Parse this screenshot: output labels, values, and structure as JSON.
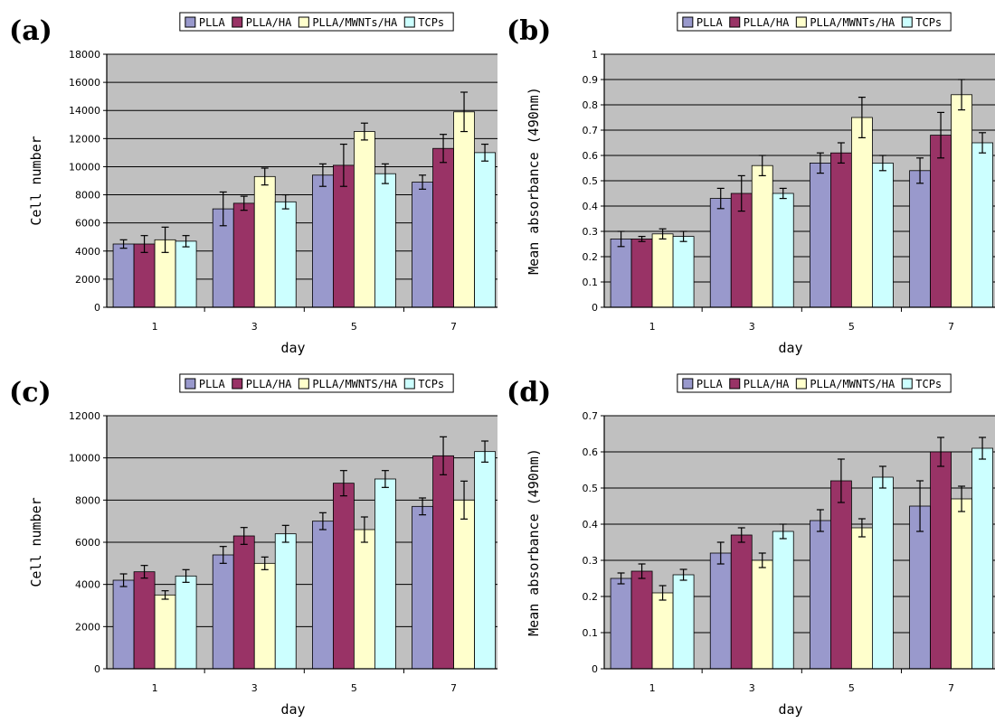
{
  "colors": {
    "PLLA": "#9999cc",
    "PLLA/HA": "#993366",
    "PLLA/MWNTs/HA": "#ffffcc",
    "TCPs": "#ccffff",
    "plot_bg": "#c0c0c0",
    "gridline": "#000000"
  },
  "chart_data": [
    {
      "panel": "(a)",
      "type": "bar",
      "xlabel": "day",
      "ylabel": "Cell number",
      "ylim": [
        0,
        18000
      ],
      "ytick_step": 2000,
      "grid": true,
      "legend_position": "top",
      "categories": [
        "1",
        "3",
        "5",
        "7"
      ],
      "series": [
        {
          "name": "PLLA",
          "values": [
            4500,
            7000,
            9400,
            8900
          ],
          "errors": [
            300,
            1200,
            800,
            500
          ]
        },
        {
          "name": "PLLA/HA",
          "values": [
            4500,
            7400,
            10100,
            11300
          ],
          "errors": [
            600,
            500,
            1500,
            1000
          ]
        },
        {
          "name": "PLLA/MWNTs/HA",
          "values": [
            4800,
            9300,
            12500,
            13900
          ],
          "errors": [
            900,
            600,
            600,
            1400
          ]
        },
        {
          "name": "TCPs",
          "values": [
            4700,
            7500,
            9500,
            11000
          ],
          "errors": [
            400,
            500,
            700,
            600
          ]
        }
      ]
    },
    {
      "panel": "(b)",
      "type": "bar",
      "xlabel": "day",
      "ylabel": "Mean absorbance (490nm)",
      "ylim": [
        0,
        1
      ],
      "ytick_step": 0.1,
      "grid": true,
      "legend_position": "top",
      "categories": [
        "1",
        "3",
        "5",
        "7"
      ],
      "series": [
        {
          "name": "PLLA",
          "values": [
            0.27,
            0.43,
            0.57,
            0.54
          ],
          "errors": [
            0.03,
            0.04,
            0.04,
            0.05
          ]
        },
        {
          "name": "PLLA/HA",
          "values": [
            0.27,
            0.45,
            0.61,
            0.68
          ],
          "errors": [
            0.01,
            0.07,
            0.04,
            0.09
          ]
        },
        {
          "name": "PLLA/MWNTs/HA",
          "values": [
            0.29,
            0.56,
            0.75,
            0.84
          ],
          "errors": [
            0.02,
            0.04,
            0.08,
            0.06
          ]
        },
        {
          "name": "TCPs",
          "values": [
            0.28,
            0.45,
            0.57,
            0.65
          ],
          "errors": [
            0.02,
            0.02,
            0.03,
            0.04
          ]
        }
      ]
    },
    {
      "panel": "(c)",
      "type": "bar",
      "xlabel": "day",
      "ylabel": "Cell number",
      "ylim": [
        0,
        12000
      ],
      "ytick_step": 2000,
      "grid": true,
      "legend_position": "top",
      "categories": [
        "1",
        "3",
        "5",
        "7"
      ],
      "series": [
        {
          "name": "PLLA",
          "values": [
            4200,
            5400,
            7000,
            7700
          ],
          "errors": [
            300,
            400,
            400,
            400
          ]
        },
        {
          "name": "PLLA/HA",
          "values": [
            4600,
            6300,
            8800,
            10100
          ],
          "errors": [
            300,
            400,
            600,
            900
          ]
        },
        {
          "name": "PLLA/MWNTS/HA",
          "values": [
            3500,
            5000,
            6600,
            8000
          ],
          "errors": [
            200,
            300,
            600,
            900
          ]
        },
        {
          "name": "TCPs",
          "values": [
            4400,
            6400,
            9000,
            10300
          ],
          "errors": [
            300,
            400,
            400,
            500
          ]
        }
      ]
    },
    {
      "panel": "(d)",
      "type": "bar",
      "xlabel": "day",
      "ylabel": "Mean absorbance (490nm)",
      "ylim": [
        0,
        0.7
      ],
      "ytick_step": 0.1,
      "grid": true,
      "legend_position": "top",
      "categories": [
        "1",
        "3",
        "5",
        "7"
      ],
      "series": [
        {
          "name": "PLLA",
          "values": [
            0.25,
            0.32,
            0.41,
            0.45
          ],
          "errors": [
            0.015,
            0.03,
            0.03,
            0.07
          ]
        },
        {
          "name": "PLLA/HA",
          "values": [
            0.27,
            0.37,
            0.52,
            0.6
          ],
          "errors": [
            0.02,
            0.02,
            0.06,
            0.04
          ]
        },
        {
          "name": "PLLA/MWNTS/HA",
          "values": [
            0.21,
            0.3,
            0.39,
            0.47
          ],
          "errors": [
            0.02,
            0.02,
            0.025,
            0.035
          ]
        },
        {
          "name": "TCPs",
          "values": [
            0.26,
            0.38,
            0.53,
            0.61
          ],
          "errors": [
            0.015,
            0.02,
            0.03,
            0.03
          ]
        }
      ]
    }
  ]
}
